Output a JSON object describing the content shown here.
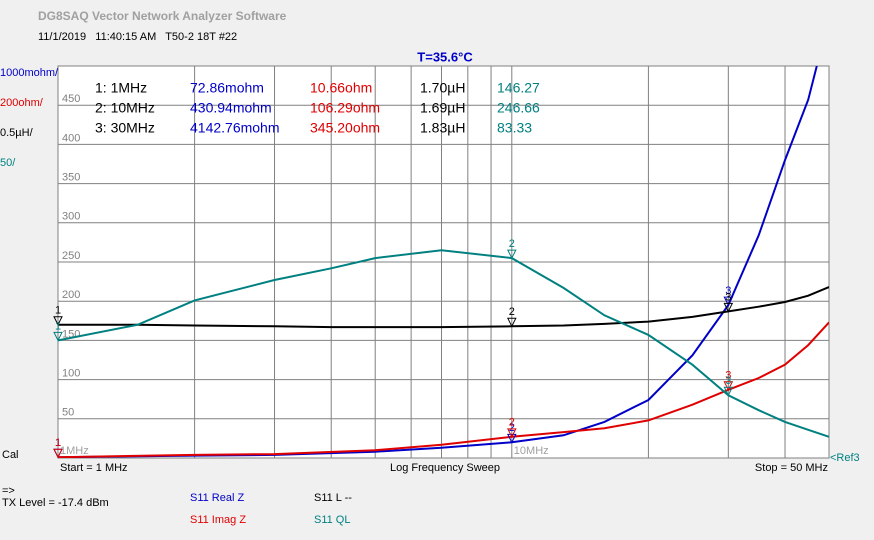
{
  "app_title": "DG8SAQ Vector Network Analyzer Software",
  "info_line": "11/1/2019   11:40:15 AM   T50-2 18T #22",
  "temperature": "T=35.6°C",
  "scales": [
    {
      "text": "1000mohm/",
      "color": "#0000c8"
    },
    {
      "text": "200ohm/",
      "color": "#e00000"
    },
    {
      "text": "0.5µH/",
      "color": "#000000"
    },
    {
      "text": "50/",
      "color": "#008080"
    }
  ],
  "marker_table": {
    "colors": [
      "#000000",
      "#0000c8",
      "#e00000",
      "#000000",
      "#008080"
    ],
    "rows": [
      [
        "1: 1MHz",
        "72.86mohm",
        "10.66ohm",
        "1.70µH",
        "146.27"
      ],
      [
        "2: 10MHz",
        "430.94mohm",
        "106.29ohm",
        "1.69µH",
        "246.66"
      ],
      [
        "3: 30MHz",
        "4142.76mohm",
        "345.20ohm",
        "1.83µH",
        "83.33"
      ]
    ]
  },
  "cal": "Cal",
  "start": "Start = 1 MHz",
  "sweep": "Log Frequency Sweep",
  "stop": "Stop = 50 MHz",
  "ref": "<Ref3",
  "arrow": "=>",
  "tx_level": "TX Level = -17.4 dBm",
  "legend": [
    {
      "text": "S11  Real Z",
      "color": "#0000c8"
    },
    {
      "text": "S11  L --",
      "color": "#000000"
    },
    {
      "text": "S11  Imag Z",
      "color": "#e00000"
    },
    {
      "text": "S11  QL",
      "color": "#008080"
    }
  ],
  "chart_data": {
    "type": "line",
    "log_x": true,
    "xlim": [
      1,
      50
    ],
    "ylim": [
      0,
      500
    ],
    "yticks": [
      50,
      100,
      150,
      200,
      250,
      300,
      350,
      400,
      450
    ],
    "xticks": [
      {
        "value": 1,
        "label": "1MHz"
      },
      {
        "value": 10,
        "label": "10MHz"
      }
    ],
    "minor_xticks": [
      2,
      3,
      4,
      5,
      6,
      7,
      8,
      9,
      20,
      30,
      40
    ],
    "grid": true,
    "markers": [
      {
        "label": "1",
        "x": 1
      },
      {
        "label": "2",
        "x": 10
      },
      {
        "label": "3",
        "x": 30
      }
    ],
    "series": [
      {
        "name": "S11 Real Z",
        "color": "#0000c8",
        "x": [
          1,
          2,
          3,
          5,
          7,
          10,
          13,
          16,
          20,
          25,
          30,
          35,
          40,
          45,
          47
        ],
        "values": [
          1,
          3,
          4,
          8,
          13,
          20,
          29,
          46,
          74,
          131,
          195,
          284,
          380,
          457,
          500
        ]
      },
      {
        "name": "S11 Imag Z",
        "color": "#e00000",
        "x": [
          1,
          2,
          3,
          5,
          7,
          10,
          13,
          16,
          20,
          25,
          30,
          35,
          40,
          45,
          50
        ],
        "values": [
          1,
          4,
          5,
          10,
          17,
          27,
          33,
          38,
          48,
          68,
          87,
          102,
          119,
          144,
          173
        ]
      },
      {
        "name": "S11 L",
        "color": "#000000",
        "x": [
          1,
          1.5,
          2,
          3,
          4,
          5,
          7,
          10,
          13,
          16,
          20,
          25,
          30,
          35,
          40,
          45,
          50
        ],
        "values": [
          170,
          170,
          169,
          168,
          167,
          167,
          167,
          168,
          169,
          171,
          174,
          180,
          187,
          193,
          199,
          207,
          218
        ]
      },
      {
        "name": "S11 QL",
        "color": "#008080",
        "x": [
          1,
          1.5,
          2,
          3,
          4,
          5,
          7,
          10,
          13,
          16,
          20,
          25,
          30,
          35,
          40,
          45,
          50
        ],
        "values": [
          150,
          170,
          201,
          227,
          242,
          255,
          265,
          255,
          217,
          182,
          157,
          119,
          80,
          61,
          46,
          36,
          27
        ]
      }
    ]
  }
}
